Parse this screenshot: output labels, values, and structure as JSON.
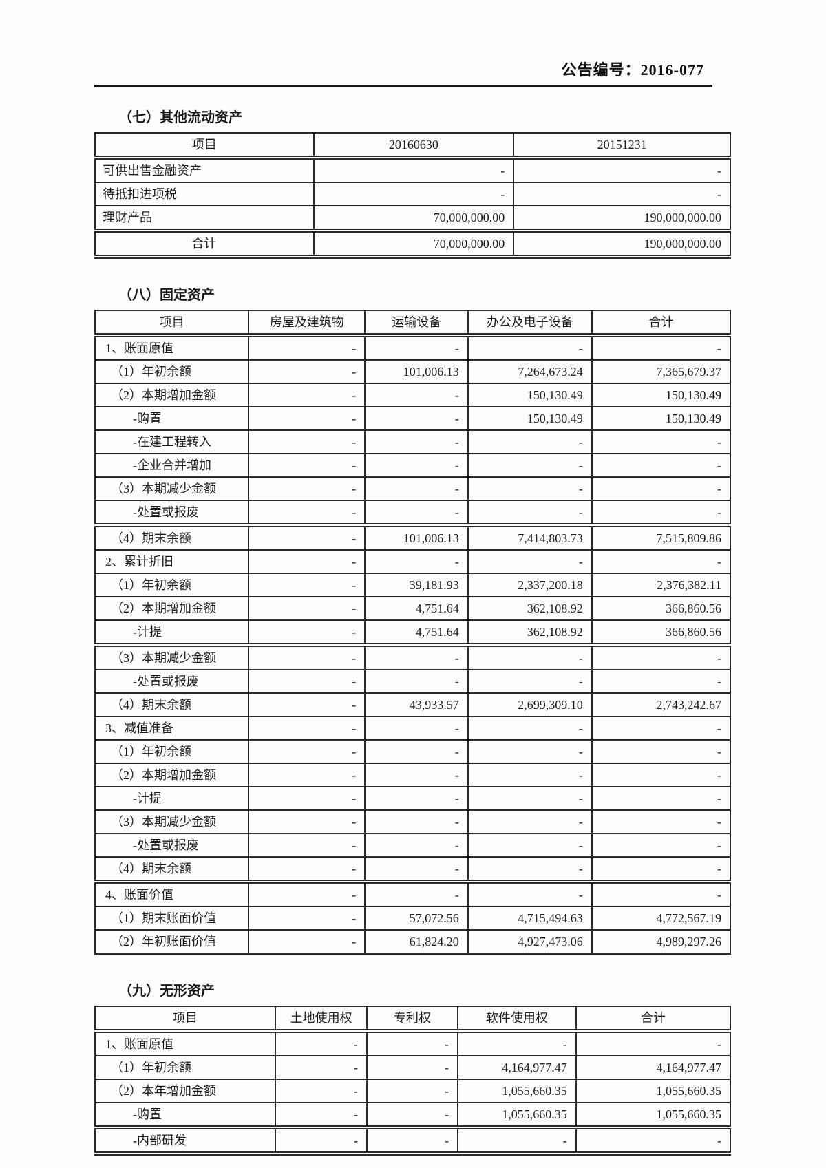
{
  "header": {
    "announcement_no": "公告编号：2016-077"
  },
  "sections": [
    {
      "id": "other-current-assets",
      "title": "（七）其他流动资产",
      "table": {
        "headers": [
          "项目",
          "20160630",
          "20151231"
        ],
        "rows": [
          {
            "label": "可供出售金融资产",
            "indent": "plain",
            "values": [
              "-",
              "-"
            ]
          },
          {
            "label": "待抵扣进项税",
            "indent": "plain",
            "values": [
              "-",
              "-"
            ]
          },
          {
            "label": "理财产品",
            "indent": "plain",
            "values": [
              "70,000,000.00",
              "190,000,000.00"
            ]
          },
          {
            "label": "合计",
            "indent": "center",
            "thick_top": true,
            "values": [
              "70,000,000.00",
              "190,000,000.00"
            ]
          }
        ]
      }
    },
    {
      "id": "fixed-assets",
      "title": "（八）固定资产",
      "table": {
        "headers": [
          "项目",
          "房屋及建筑物",
          "运输设备",
          "办公及电子设备",
          "合计"
        ],
        "rows": [
          {
            "label": "1、账面原值",
            "indent": "l0",
            "values": [
              "-",
              "-",
              "-",
              "-"
            ]
          },
          {
            "label": "（1）年初余额",
            "indent": "l1",
            "values": [
              "-",
              "101,006.13",
              "7,264,673.24",
              "7,365,679.37"
            ]
          },
          {
            "label": "（2）本期增加金额",
            "indent": "l1",
            "values": [
              "-",
              "-",
              "150,130.49",
              "150,130.49"
            ]
          },
          {
            "label": "-购置",
            "indent": "l2",
            "values": [
              "-",
              "-",
              "150,130.49",
              "150,130.49"
            ]
          },
          {
            "label": "-在建工程转入",
            "indent": "l2",
            "values": [
              "-",
              "-",
              "-",
              "-"
            ]
          },
          {
            "label": "-企业合并增加",
            "indent": "l2",
            "values": [
              "-",
              "-",
              "-",
              "-"
            ]
          },
          {
            "label": "（3）本期减少金额",
            "indent": "l1",
            "values": [
              "-",
              "-",
              "-",
              "-"
            ]
          },
          {
            "label": "-处置或报废",
            "indent": "l2",
            "values": [
              "-",
              "-",
              "-",
              "-"
            ]
          },
          {
            "label": "（4）期末余额",
            "indent": "l1",
            "thick_top": true,
            "values": [
              "-",
              "101,006.13",
              "7,414,803.73",
              "7,515,809.86"
            ]
          },
          {
            "label": "2、累计折旧",
            "indent": "l0",
            "values": [
              "-",
              "-",
              "-",
              "-"
            ]
          },
          {
            "label": "（1）年初余额",
            "indent": "l1",
            "values": [
              "-",
              "39,181.93",
              "2,337,200.18",
              "2,376,382.11"
            ]
          },
          {
            "label": "（2）本期增加金额",
            "indent": "l1",
            "values": [
              "-",
              "4,751.64",
              "362,108.92",
              "366,860.56"
            ]
          },
          {
            "label": "-计提",
            "indent": "l2",
            "values": [
              "-",
              "4,751.64",
              "362,108.92",
              "366,860.56"
            ]
          },
          {
            "label": "（3）本期减少金额",
            "indent": "l1",
            "thick_top": true,
            "values": [
              "-",
              "-",
              "-",
              "-"
            ]
          },
          {
            "label": "-处置或报废",
            "indent": "l2",
            "values": [
              "-",
              "-",
              "-",
              "-"
            ]
          },
          {
            "label": "（4）期末余额",
            "indent": "l1",
            "values": [
              "-",
              "43,933.57",
              "2,699,309.10",
              "2,743,242.67"
            ]
          },
          {
            "label": "3、减值准备",
            "indent": "l0",
            "values": [
              "-",
              "-",
              "-",
              "-"
            ]
          },
          {
            "label": "（1）年初余额",
            "indent": "l1",
            "values": [
              "-",
              "-",
              "-",
              "-"
            ]
          },
          {
            "label": "（2）本期增加金额",
            "indent": "l1",
            "values": [
              "-",
              "-",
              "-",
              "-"
            ]
          },
          {
            "label": "-计提",
            "indent": "l2",
            "values": [
              "-",
              "-",
              "-",
              "-"
            ]
          },
          {
            "label": "（3）本期减少金额",
            "indent": "l1",
            "values": [
              "-",
              "-",
              "-",
              "-"
            ]
          },
          {
            "label": "-处置或报废",
            "indent": "l2",
            "values": [
              "-",
              "-",
              "-",
              "-"
            ]
          },
          {
            "label": "（4）期末余额",
            "indent": "l1",
            "values": [
              "-",
              "-",
              "-",
              "-"
            ]
          },
          {
            "label": "4、账面价值",
            "indent": "l0",
            "thick_top": true,
            "values": [
              "-",
              "-",
              "-",
              "-"
            ]
          },
          {
            "label": "（1）期末账面价值",
            "indent": "l1",
            "values": [
              "-",
              "57,072.56",
              "4,715,494.63",
              "4,772,567.19"
            ]
          },
          {
            "label": "（2）年初账面价值",
            "indent": "l1",
            "values": [
              "-",
              "61,824.20",
              "4,927,473.06",
              "4,989,297.26"
            ]
          }
        ]
      }
    },
    {
      "id": "intangible-assets",
      "title": "（九）无形资产",
      "table": {
        "headers": [
          "项目",
          "土地使用权",
          "专利权",
          "软件使用权",
          "合计"
        ],
        "rows": [
          {
            "label": "1、账面原值",
            "indent": "l0",
            "values": [
              "-",
              "-",
              "-",
              "-"
            ]
          },
          {
            "label": "（1）年初余额",
            "indent": "l1",
            "values": [
              "-",
              "-",
              "4,164,977.47",
              "4,164,977.47"
            ]
          },
          {
            "label": "（2）本年增加金额",
            "indent": "l1",
            "values": [
              "-",
              "-",
              "1,055,660.35",
              "1,055,660.35"
            ]
          },
          {
            "label": "-购置",
            "indent": "l2",
            "values": [
              "-",
              "-",
              "1,055,660.35",
              "1,055,660.35"
            ]
          },
          {
            "label": "-内部研发",
            "indent": "l2",
            "thick_top": true,
            "values": [
              "-",
              "-",
              "-",
              "-"
            ]
          }
        ]
      }
    }
  ]
}
